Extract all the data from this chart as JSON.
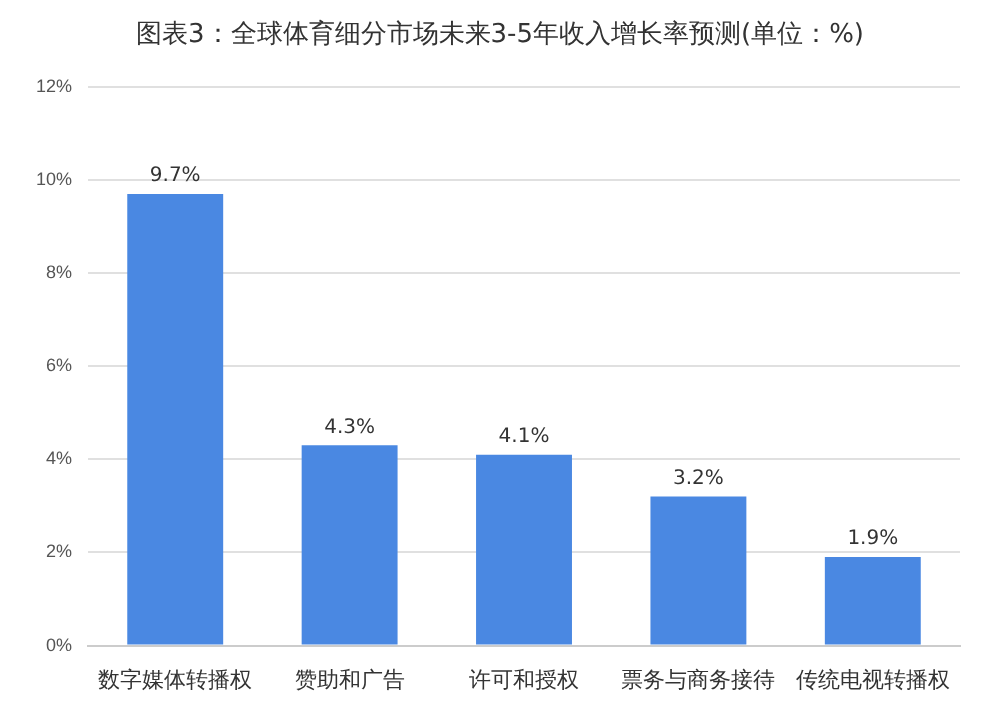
{
  "chart_data": {
    "type": "bar",
    "title": "图表3：全球体育细分市场未来3-5年收入增长率预测(单位：%)",
    "categories": [
      "数字媒体转播权",
      "赞助和广告",
      "许可和授权",
      "票务与商务接待",
      "传统电视转播权"
    ],
    "values": [
      9.7,
      4.3,
      4.1,
      3.2,
      1.9
    ],
    "value_labels": [
      "9.7%",
      "4.3%",
      "4.1%",
      "3.2%",
      "1.9%"
    ],
    "color": "#4a88e2",
    "ylim": [
      0,
      12
    ],
    "yticks": [
      {
        "value": 0,
        "label": "0%"
      },
      {
        "value": 2,
        "label": "2%"
      },
      {
        "value": 4,
        "label": "4%"
      },
      {
        "value": 6,
        "label": "6%"
      },
      {
        "value": 8,
        "label": "8%"
      },
      {
        "value": 10,
        "label": "10%"
      },
      {
        "value": 12,
        "label": "12%"
      }
    ],
    "grid": "y"
  }
}
